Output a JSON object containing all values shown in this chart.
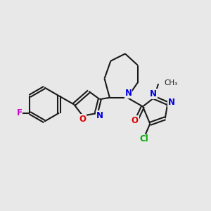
{
  "bg_color": "#e8e8e8",
  "bond_color": "#1a1a1a",
  "bond_width": 1.5,
  "doff": 0.07,
  "atom_colors": {
    "F": "#cc00cc",
    "O": "#dd0000",
    "N": "#0000dd",
    "Cl": "#00aa00",
    "C": "#1a1a1a"
  },
  "font_size": 8.5,
  "methyl_font_size": 7.5
}
